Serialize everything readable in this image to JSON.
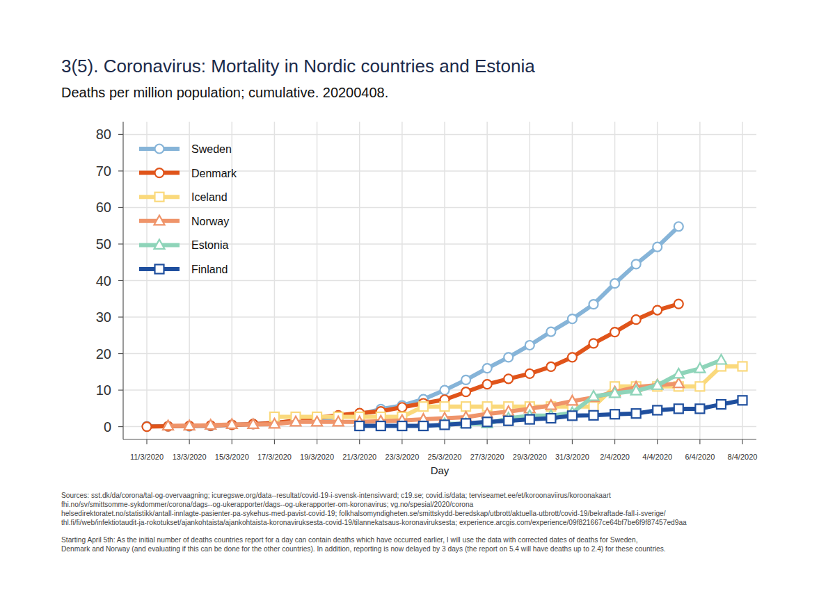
{
  "chart_data": {
    "type": "line",
    "title": "3(5). Coronavirus: Mortality in Nordic countries and Estonia",
    "subtitle": "Deaths per million population; cumulative. 20200408.",
    "x_label": "Day",
    "categories": [
      "11/3/2020",
      null,
      "13/3/2020",
      null,
      "15/3/2020",
      null,
      "17/3/2020",
      null,
      "19/3/2020",
      null,
      "21/3/2020",
      null,
      "23/3/2020",
      null,
      "25/3/2020",
      null,
      "27/3/2020",
      null,
      "29/3/2020",
      null,
      "31/3/2020",
      null,
      "2/4/2020",
      null,
      "4/4/2020",
      null,
      "6/4/2020",
      null,
      "8/4/2020"
    ],
    "ylim": [
      -3.5,
      83.5
    ],
    "yticks": [
      0,
      10,
      20,
      30,
      40,
      50,
      60,
      70,
      80
    ],
    "grid": true,
    "legend": "top-left",
    "series": [
      {
        "name": "Sweden",
        "color": "#86b4d8",
        "marker": "circle",
        "values": [
          0.1,
          0.1,
          0.1,
          0.2,
          0.5,
          0.7,
          1.0,
          1.6,
          2.1,
          2.6,
          3.3,
          4.8,
          5.8,
          7.5,
          10.0,
          12.8,
          16.0,
          19.0,
          22.3,
          26.0,
          29.5,
          33.5,
          39.2,
          44.5,
          49.2,
          54.8,
          null,
          null,
          null
        ]
      },
      {
        "name": "Denmark",
        "color": "#e0541a",
        "marker": "circle",
        "values": [
          0.0,
          0.1,
          0.2,
          0.3,
          0.5,
          0.7,
          1.0,
          1.7,
          2.4,
          3.1,
          3.7,
          4.2,
          5.3,
          6.4,
          7.4,
          9.5,
          11.6,
          13.1,
          14.5,
          16.4,
          19.0,
          22.8,
          25.9,
          29.3,
          31.9,
          33.6,
          null,
          null,
          null
        ]
      },
      {
        "name": "Iceland",
        "color": "#fad97c",
        "marker": "square",
        "values": [
          null,
          null,
          null,
          null,
          null,
          null,
          2.7,
          2.7,
          2.7,
          2.7,
          2.7,
          2.7,
          2.7,
          5.5,
          5.5,
          5.5,
          5.5,
          5.5,
          5.5,
          5.5,
          5.5,
          5.5,
          11.0,
          11.0,
          11.0,
          11.0,
          11.0,
          16.5,
          16.5
        ]
      },
      {
        "name": "Norway",
        "color": "#ef946a",
        "marker": "triangle",
        "values": [
          null,
          0.2,
          0.2,
          0.4,
          0.6,
          0.6,
          0.7,
          1.3,
          1.3,
          1.3,
          1.3,
          1.5,
          1.7,
          2.0,
          2.3,
          2.6,
          3.5,
          4.1,
          4.9,
          5.8,
          7.0,
          8.0,
          9.5,
          10.8,
          11.4,
          11.8,
          null,
          null,
          null
        ]
      },
      {
        "name": "Estonia",
        "color": "#8ed4b9",
        "marker": "triangle",
        "values": [
          null,
          null,
          null,
          null,
          null,
          null,
          null,
          null,
          null,
          null,
          null,
          null,
          null,
          null,
          0.8,
          0.8,
          0.8,
          2.3,
          3.0,
          3.0,
          3.8,
          8.3,
          9.1,
          9.8,
          11.3,
          14.4,
          15.9,
          18.2,
          null
        ]
      },
      {
        "name": "Finland",
        "color": "#1f4f9e",
        "marker": "square",
        "values": [
          null,
          null,
          null,
          null,
          null,
          null,
          null,
          null,
          null,
          null,
          0.2,
          0.2,
          0.2,
          0.2,
          0.5,
          0.9,
          1.3,
          1.6,
          2.0,
          2.3,
          3.0,
          3.1,
          3.4,
          3.6,
          4.5,
          4.9,
          4.9,
          6.1,
          7.2
        ]
      }
    ],
    "annotations": [
      "Sources: sst.dk/da/corona/tal-og-overvaagning; icuregswe.org/data--resultat/covid-19-i-svensk-intensivvard; c19.se; covid.is/data;  terviseamet.ee/et/koroonaviirus/koroonakaart",
      "fhi.no/sv/smittsomme-sykdommer/corona/dags--og-ukerapporter/dags--og-ukerapporter-om-koronavirus; vg.no/spesial/2020/corona",
      "helsedirektoratet.no/statistikk/antall-innlagte-pasienter-pa-sykehus-med-pavist-covid-19; folkhalsomyndigheten.se/smittskydd-beredskap/utbrott/aktuella-utbrott/covid-19/bekraftade-fall-i-sverige/",
      "thl.fi/fi/web/infektiotaudit-ja-rokotukset/ajankohtaista/ajankohtaista-koronaviruksesta-covid-19/tilannekatsaus-koronaviruksesta; experience.arcgis.com/experience/09f821667ce64bf7be6f9f87457ed9aa",
      "Starting April 5th: As the initial number of deaths countries report for a day can contain deaths which have occurred earlier, I will use the data with corrected dates of deaths for Sweden,",
      "Denmark and Norway (and evaluating if this can be done for the other countries). In addition, reporting is now delayed by 3 days (the report on 5.4 will have deaths up to 2.4) for these countries."
    ]
  }
}
